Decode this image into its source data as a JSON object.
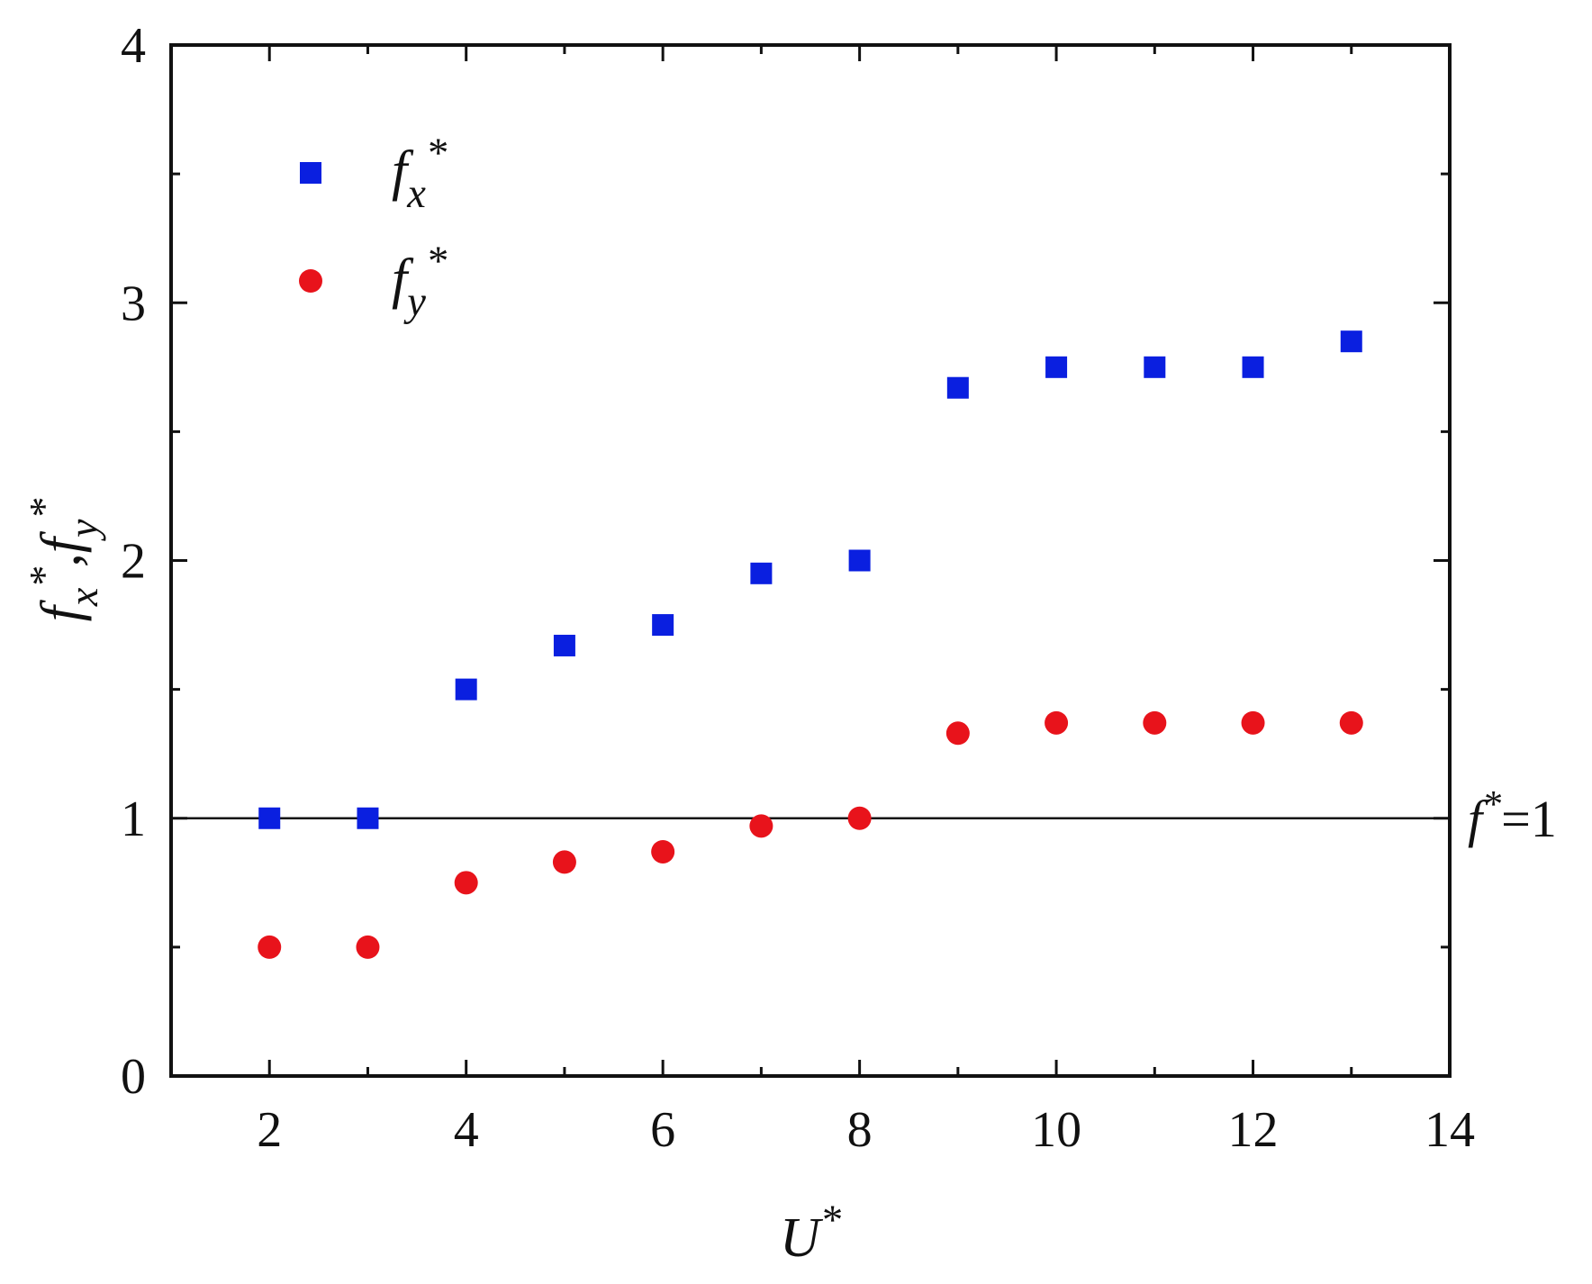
{
  "chart_data": {
    "type": "scatter",
    "title": "",
    "xlabel": "U*",
    "ylabel": "fx*,fy*",
    "xlim": [
      1,
      14
    ],
    "ylim": [
      0,
      4
    ],
    "xticks": [
      2,
      4,
      6,
      8,
      10,
      12,
      14
    ],
    "yticks": [
      0,
      1,
      2,
      3,
      4
    ],
    "grid": false,
    "legend_position": "top-left",
    "series": [
      {
        "name": "fx*",
        "marker": "square",
        "color": "#0a1fe0",
        "x": [
          2,
          3,
          4,
          5,
          6,
          7,
          8,
          9,
          10,
          11,
          12,
          13
        ],
        "y": [
          1.0,
          1.0,
          1.5,
          1.67,
          1.75,
          1.95,
          2.0,
          2.67,
          2.75,
          2.75,
          2.75,
          2.85
        ]
      },
      {
        "name": "fy*",
        "marker": "circle",
        "color": "#e8131b",
        "x": [
          2,
          3,
          4,
          5,
          6,
          7,
          8,
          9,
          10,
          11,
          12,
          13
        ],
        "y": [
          0.5,
          0.5,
          0.75,
          0.83,
          0.87,
          0.97,
          1.0,
          1.33,
          1.37,
          1.37,
          1.37,
          1.37
        ]
      }
    ],
    "reference_line": {
      "y": 1,
      "label": "f*=1"
    }
  }
}
